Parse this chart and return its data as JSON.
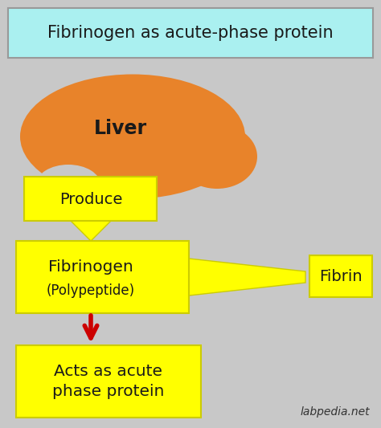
{
  "title": "Fibrinogen as acute-phase protein",
  "title_bg": "#aaf0f0",
  "title_color": "#1a1a1a",
  "bg_color": "#c8c8c8",
  "box_color": "#ffff00",
  "box_edge": "#cccc00",
  "liver_color": "#e8832a",
  "liver_label": "Liver",
  "produce_label": "Produce",
  "fibrinogen_line1": "Fibrinogen",
  "fibrinogen_line2": "(Polypeptide)",
  "fibrin_label": "Fibrin",
  "acts_label": "Acts as acute\nphase protein",
  "watermark": "labpedia.net",
  "arrow_red": "#cc0000"
}
